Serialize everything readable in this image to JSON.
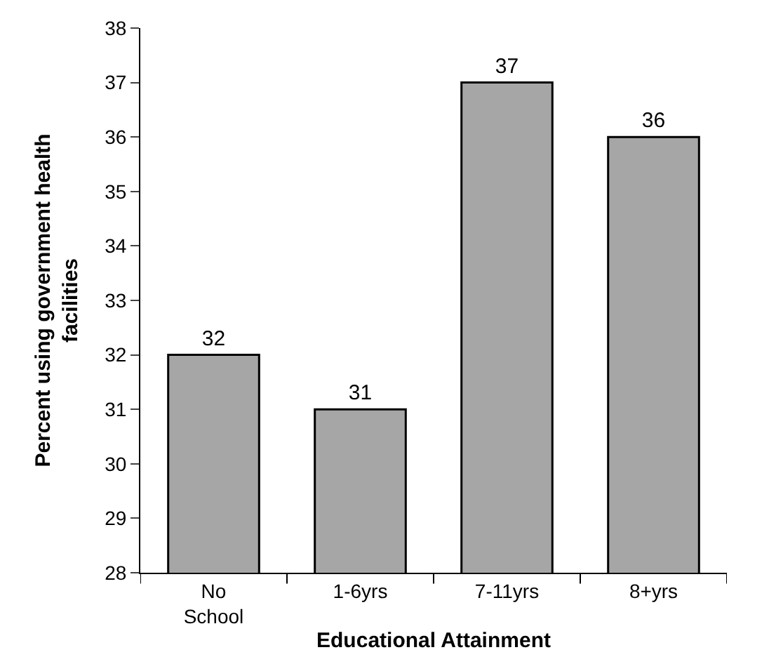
{
  "chart_data": {
    "type": "bar",
    "xlabel": "Educational Attainment",
    "ylabel": "Percent using government health facilities",
    "categories": [
      "No School",
      "1-6yrs",
      "7-11yrs",
      "8+yrs"
    ],
    "values": [
      32,
      31,
      37,
      36
    ],
    "color": "#a6a6a6",
    "ylim": [
      28,
      38
    ],
    "yticks": [
      28,
      29,
      30,
      31,
      32,
      33,
      34,
      35,
      36,
      37,
      38
    ],
    "data_labels": true
  }
}
